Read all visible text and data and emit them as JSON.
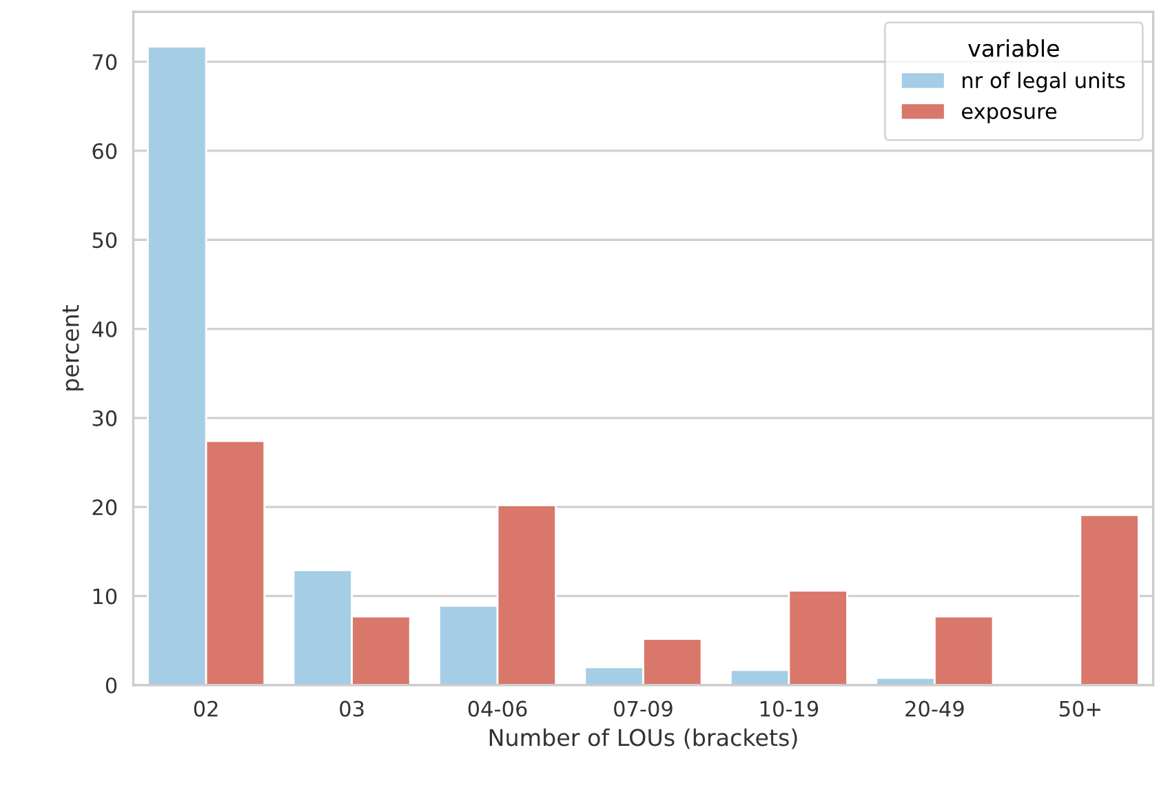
{
  "chart_data": {
    "type": "bar",
    "xlabel": "Number of LOUs (brackets)",
    "ylabel": "percent",
    "legend_title": "variable",
    "categories": [
      "02",
      "03",
      "04-06",
      "07-09",
      "10-19",
      "20-49",
      "50+"
    ],
    "series": [
      {
        "name": "nr of legal units",
        "color": "#a6cde6",
        "values": [
          71.7,
          12.9,
          8.9,
          2.0,
          1.7,
          0.8,
          0.2
        ]
      },
      {
        "name": "exposure",
        "color": "#d9786a",
        "values": [
          27.4,
          7.7,
          20.2,
          5.2,
          10.6,
          7.7,
          19.1
        ]
      }
    ],
    "ylim": [
      0,
      75.6
    ],
    "yticks": [
      0,
      10,
      20,
      30,
      40,
      50,
      60,
      70
    ],
    "grid": "y",
    "legend": "top right"
  }
}
